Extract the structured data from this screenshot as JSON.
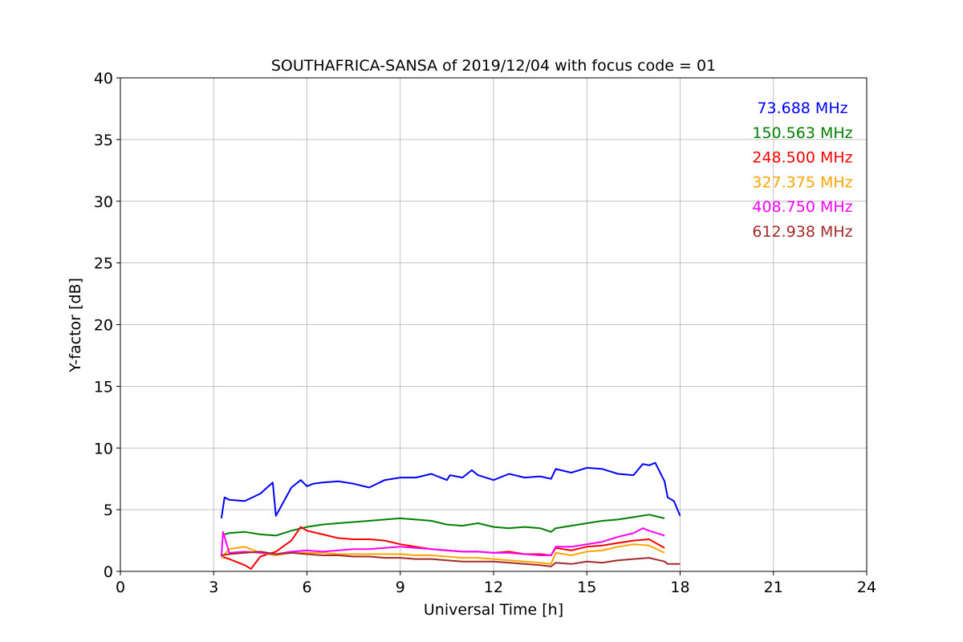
{
  "chart_data": {
    "type": "line",
    "title": "SOUTHAFRICA-SANSA of 2019/12/04 with focus code = 01",
    "xlabel": "Universal Time [h]",
    "ylabel": "Y-factor [dB]",
    "xlim": [
      0,
      24
    ],
    "ylim": [
      0,
      40
    ],
    "xticks": [
      0,
      3,
      6,
      9,
      12,
      15,
      18,
      21,
      24
    ],
    "yticks": [
      0,
      5,
      10,
      15,
      20,
      25,
      30,
      35,
      40
    ],
    "grid": true,
    "legend_position": "top-right",
    "series": [
      {
        "name": "73.688 MHz",
        "color": "#0000ff",
        "x": [
          3.25,
          3.35,
          3.5,
          4.0,
          4.5,
          4.9,
          5.0,
          5.5,
          5.8,
          6.0,
          6.2,
          6.5,
          7.0,
          7.5,
          8.0,
          8.5,
          9.0,
          9.5,
          10.0,
          10.5,
          10.6,
          11.0,
          11.3,
          11.5,
          12.0,
          12.5,
          13.0,
          13.5,
          13.85,
          14.0,
          14.5,
          15.0,
          15.5,
          16.0,
          16.5,
          16.8,
          17.0,
          17.2,
          17.5,
          17.6,
          17.8,
          18.0
        ],
        "y": [
          4.3,
          6.0,
          5.8,
          5.7,
          6.3,
          7.2,
          4.5,
          6.8,
          7.4,
          6.9,
          7.1,
          7.2,
          7.3,
          7.1,
          6.8,
          7.4,
          7.6,
          7.6,
          7.9,
          7.4,
          7.8,
          7.6,
          8.2,
          7.8,
          7.4,
          7.9,
          7.6,
          7.7,
          7.5,
          8.3,
          8.0,
          8.4,
          8.3,
          7.9,
          7.8,
          8.7,
          8.6,
          8.8,
          7.3,
          6.0,
          5.7,
          4.5
        ]
      },
      {
        "name": "150.563 MHz",
        "color": "#008000",
        "x": [
          3.35,
          3.5,
          4.0,
          4.5,
          5.0,
          5.5,
          6.0,
          6.5,
          7.0,
          7.5,
          8.0,
          8.5,
          9.0,
          9.5,
          10.0,
          10.5,
          11.0,
          11.5,
          12.0,
          12.5,
          13.0,
          13.5,
          13.85,
          14.0,
          14.5,
          15.0,
          15.5,
          16.0,
          16.5,
          17.0,
          17.5
        ],
        "y": [
          3.0,
          3.1,
          3.2,
          3.0,
          2.9,
          3.3,
          3.6,
          3.8,
          3.9,
          4.0,
          4.1,
          4.2,
          4.3,
          4.2,
          4.1,
          3.8,
          3.7,
          3.9,
          3.6,
          3.5,
          3.6,
          3.5,
          3.2,
          3.5,
          3.7,
          3.9,
          4.1,
          4.2,
          4.4,
          4.6,
          4.3
        ]
      },
      {
        "name": "248.500 MHz",
        "color": "#ff0000",
        "x": [
          3.25,
          3.5,
          4.0,
          4.2,
          4.5,
          5.0,
          5.5,
          5.8,
          6.0,
          6.5,
          7.0,
          7.5,
          8.0,
          8.5,
          9.0,
          9.5,
          10.0,
          10.5,
          11.0,
          11.5,
          12.0,
          12.5,
          13.0,
          13.5,
          13.85,
          14.0,
          14.5,
          15.0,
          15.5,
          16.0,
          16.5,
          17.0,
          17.5
        ],
        "y": [
          1.2,
          1.0,
          0.5,
          0.2,
          1.2,
          1.6,
          2.5,
          3.6,
          3.3,
          3.0,
          2.7,
          2.6,
          2.6,
          2.5,
          2.2,
          2.0,
          1.8,
          1.7,
          1.6,
          1.6,
          1.5,
          1.6,
          1.4,
          1.4,
          1.3,
          1.9,
          1.7,
          2.0,
          2.1,
          2.3,
          2.5,
          2.6,
          1.9
        ]
      },
      {
        "name": "327.375 MHz",
        "color": "#ffa500",
        "x": [
          3.25,
          3.5,
          4.0,
          4.5,
          5.0,
          5.5,
          6.0,
          6.5,
          7.0,
          7.5,
          8.0,
          8.5,
          9.0,
          9.5,
          10.0,
          10.5,
          11.0,
          11.5,
          12.0,
          12.5,
          13.0,
          13.5,
          13.85,
          14.0,
          14.5,
          15.0,
          15.5,
          16.0,
          16.5,
          17.0,
          17.5
        ],
        "y": [
          1.1,
          1.8,
          2.0,
          1.5,
          1.3,
          1.5,
          1.5,
          1.5,
          1.4,
          1.4,
          1.4,
          1.4,
          1.4,
          1.3,
          1.3,
          1.2,
          1.1,
          1.1,
          1.0,
          0.9,
          0.8,
          0.7,
          0.6,
          1.5,
          1.3,
          1.6,
          1.7,
          2.0,
          2.2,
          2.1,
          1.5
        ]
      },
      {
        "name": "408.750 MHz",
        "color": "#ff00ff",
        "x": [
          3.25,
          3.3,
          3.5,
          4.0,
          4.5,
          5.0,
          5.5,
          6.0,
          6.5,
          7.0,
          7.5,
          8.0,
          8.5,
          9.0,
          9.5,
          10.0,
          10.5,
          11.0,
          11.5,
          12.0,
          12.5,
          13.0,
          13.5,
          13.85,
          14.0,
          14.5,
          15.0,
          15.5,
          16.0,
          16.5,
          16.8,
          17.0,
          17.5
        ],
        "y": [
          1.2,
          3.2,
          1.5,
          1.6,
          1.5,
          1.4,
          1.6,
          1.7,
          1.6,
          1.7,
          1.8,
          1.8,
          1.9,
          2.0,
          1.9,
          1.8,
          1.7,
          1.6,
          1.6,
          1.5,
          1.5,
          1.4,
          1.3,
          1.3,
          2.0,
          2.0,
          2.2,
          2.4,
          2.8,
          3.1,
          3.5,
          3.3,
          2.9
        ]
      },
      {
        "name": "612.938 MHz",
        "color": "#a52a2a",
        "x": [
          3.25,
          3.5,
          4.0,
          4.5,
          5.0,
          5.5,
          6.0,
          6.5,
          7.0,
          7.5,
          8.0,
          8.5,
          9.0,
          9.5,
          10.0,
          10.5,
          11.0,
          11.5,
          12.0,
          12.5,
          13.0,
          13.5,
          13.85,
          14.0,
          14.5,
          15.0,
          15.5,
          16.0,
          16.5,
          17.0,
          17.5,
          17.6,
          18.0
        ],
        "y": [
          1.3,
          1.4,
          1.5,
          1.6,
          1.4,
          1.5,
          1.4,
          1.3,
          1.3,
          1.2,
          1.2,
          1.1,
          1.1,
          1.0,
          1.0,
          0.9,
          0.8,
          0.8,
          0.8,
          0.7,
          0.6,
          0.5,
          0.4,
          0.7,
          0.6,
          0.8,
          0.7,
          0.9,
          1.0,
          1.1,
          0.8,
          0.6,
          0.6
        ]
      }
    ]
  }
}
